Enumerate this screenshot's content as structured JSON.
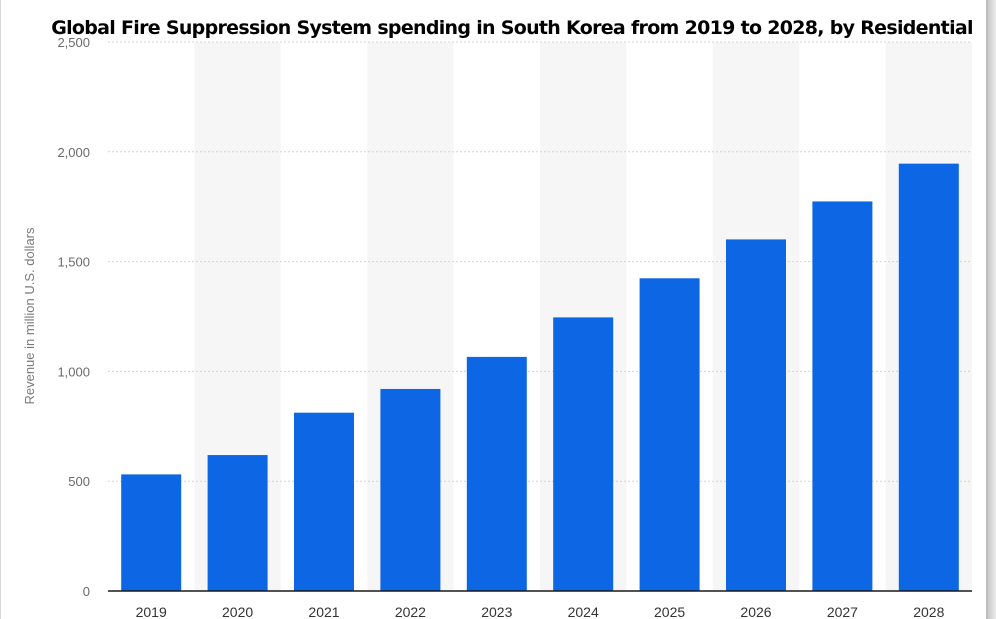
{
  "chart_data": {
    "type": "bar",
    "title": "Global Fire Suppression System spending in South Korea from 2019 to 2028, by Residential",
    "xlabel": "",
    "ylabel": "Revenue in million U.S. dollars",
    "categories": [
      "2019",
      "2020",
      "2021",
      "2022",
      "2023",
      "2024",
      "2025",
      "2026",
      "2027",
      "2028"
    ],
    "values": [
      531,
      619,
      812,
      920,
      1066,
      1246,
      1424,
      1601,
      1774,
      1946
    ],
    "ylim": [
      0,
      2500
    ],
    "yticks": [
      0,
      500,
      1000,
      1500,
      2000,
      2500
    ],
    "ytick_labels": [
      "0",
      "500",
      "1,000",
      "1,500",
      "2,000",
      "2,500"
    ],
    "bar_color": "#0d66e4",
    "band_color": "#f6f6f6",
    "grid": true
  }
}
